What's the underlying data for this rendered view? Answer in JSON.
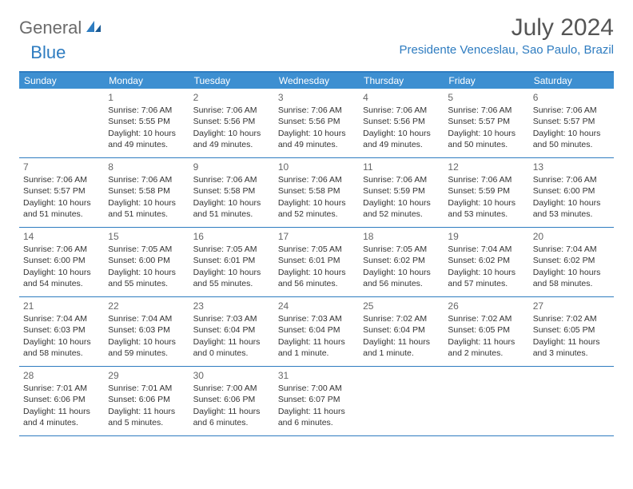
{
  "logo": {
    "text1": "General",
    "text2": "Blue"
  },
  "title": "July 2024",
  "location": "Presidente Venceslau, Sao Paulo, Brazil",
  "colors": {
    "header_bg": "#3d8fd1",
    "border": "#2e7cc0",
    "logo_gray": "#6b6b6b",
    "logo_blue": "#2e7cc0",
    "title_color": "#555555",
    "text_color": "#333333"
  },
  "day_names": [
    "Sunday",
    "Monday",
    "Tuesday",
    "Wednesday",
    "Thursday",
    "Friday",
    "Saturday"
  ],
  "weeks": [
    [
      null,
      {
        "n": "1",
        "sr": "7:06 AM",
        "ss": "5:55 PM",
        "dl": "10 hours and 49 minutes."
      },
      {
        "n": "2",
        "sr": "7:06 AM",
        "ss": "5:56 PM",
        "dl": "10 hours and 49 minutes."
      },
      {
        "n": "3",
        "sr": "7:06 AM",
        "ss": "5:56 PM",
        "dl": "10 hours and 49 minutes."
      },
      {
        "n": "4",
        "sr": "7:06 AM",
        "ss": "5:56 PM",
        "dl": "10 hours and 49 minutes."
      },
      {
        "n": "5",
        "sr": "7:06 AM",
        "ss": "5:57 PM",
        "dl": "10 hours and 50 minutes."
      },
      {
        "n": "6",
        "sr": "7:06 AM",
        "ss": "5:57 PM",
        "dl": "10 hours and 50 minutes."
      }
    ],
    [
      {
        "n": "7",
        "sr": "7:06 AM",
        "ss": "5:57 PM",
        "dl": "10 hours and 51 minutes."
      },
      {
        "n": "8",
        "sr": "7:06 AM",
        "ss": "5:58 PM",
        "dl": "10 hours and 51 minutes."
      },
      {
        "n": "9",
        "sr": "7:06 AM",
        "ss": "5:58 PM",
        "dl": "10 hours and 51 minutes."
      },
      {
        "n": "10",
        "sr": "7:06 AM",
        "ss": "5:58 PM",
        "dl": "10 hours and 52 minutes."
      },
      {
        "n": "11",
        "sr": "7:06 AM",
        "ss": "5:59 PM",
        "dl": "10 hours and 52 minutes."
      },
      {
        "n": "12",
        "sr": "7:06 AM",
        "ss": "5:59 PM",
        "dl": "10 hours and 53 minutes."
      },
      {
        "n": "13",
        "sr": "7:06 AM",
        "ss": "6:00 PM",
        "dl": "10 hours and 53 minutes."
      }
    ],
    [
      {
        "n": "14",
        "sr": "7:06 AM",
        "ss": "6:00 PM",
        "dl": "10 hours and 54 minutes."
      },
      {
        "n": "15",
        "sr": "7:05 AM",
        "ss": "6:00 PM",
        "dl": "10 hours and 55 minutes."
      },
      {
        "n": "16",
        "sr": "7:05 AM",
        "ss": "6:01 PM",
        "dl": "10 hours and 55 minutes."
      },
      {
        "n": "17",
        "sr": "7:05 AM",
        "ss": "6:01 PM",
        "dl": "10 hours and 56 minutes."
      },
      {
        "n": "18",
        "sr": "7:05 AM",
        "ss": "6:02 PM",
        "dl": "10 hours and 56 minutes."
      },
      {
        "n": "19",
        "sr": "7:04 AM",
        "ss": "6:02 PM",
        "dl": "10 hours and 57 minutes."
      },
      {
        "n": "20",
        "sr": "7:04 AM",
        "ss": "6:02 PM",
        "dl": "10 hours and 58 minutes."
      }
    ],
    [
      {
        "n": "21",
        "sr": "7:04 AM",
        "ss": "6:03 PM",
        "dl": "10 hours and 58 minutes."
      },
      {
        "n": "22",
        "sr": "7:04 AM",
        "ss": "6:03 PM",
        "dl": "10 hours and 59 minutes."
      },
      {
        "n": "23",
        "sr": "7:03 AM",
        "ss": "6:04 PM",
        "dl": "11 hours and 0 minutes."
      },
      {
        "n": "24",
        "sr": "7:03 AM",
        "ss": "6:04 PM",
        "dl": "11 hours and 1 minute."
      },
      {
        "n": "25",
        "sr": "7:02 AM",
        "ss": "6:04 PM",
        "dl": "11 hours and 1 minute."
      },
      {
        "n": "26",
        "sr": "7:02 AM",
        "ss": "6:05 PM",
        "dl": "11 hours and 2 minutes."
      },
      {
        "n": "27",
        "sr": "7:02 AM",
        "ss": "6:05 PM",
        "dl": "11 hours and 3 minutes."
      }
    ],
    [
      {
        "n": "28",
        "sr": "7:01 AM",
        "ss": "6:06 PM",
        "dl": "11 hours and 4 minutes."
      },
      {
        "n": "29",
        "sr": "7:01 AM",
        "ss": "6:06 PM",
        "dl": "11 hours and 5 minutes."
      },
      {
        "n": "30",
        "sr": "7:00 AM",
        "ss": "6:06 PM",
        "dl": "11 hours and 6 minutes."
      },
      {
        "n": "31",
        "sr": "7:00 AM",
        "ss": "6:07 PM",
        "dl": "11 hours and 6 minutes."
      },
      null,
      null,
      null
    ]
  ],
  "labels": {
    "sunrise": "Sunrise:",
    "sunset": "Sunset:",
    "daylight": "Daylight:"
  }
}
